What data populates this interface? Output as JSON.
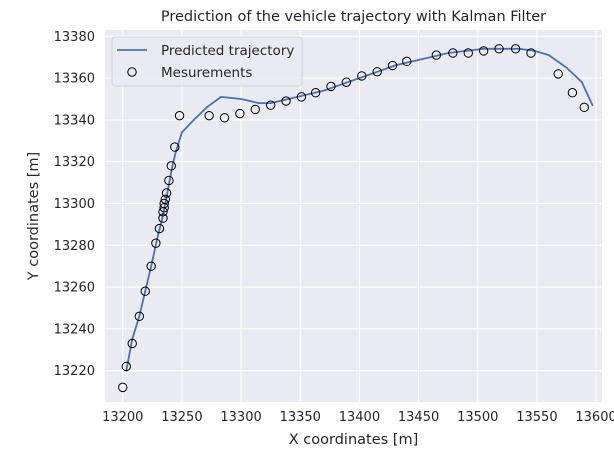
{
  "chart_data": {
    "type": "line",
    "title": "Prediction of the vehicle trajectory with Kalman Filter",
    "xlabel": "X coordinates [m]",
    "ylabel": "Y coordinates [m]",
    "xlim": [
      13185,
      13605
    ],
    "ylim": [
      13205,
      13383
    ],
    "xticks": [
      13200,
      13250,
      13300,
      13350,
      13400,
      13450,
      13500,
      13550,
      13600
    ],
    "yticks": [
      13220,
      13240,
      13260,
      13280,
      13300,
      13320,
      13340,
      13360,
      13380
    ],
    "grid": true,
    "legend_position": "top-left",
    "colors": {
      "background": "#eaeaf2",
      "grid": "#ffffff",
      "line": "#4c72b0",
      "marker_edge": "#000000"
    },
    "series": [
      {
        "name": "Predicted trajectory",
        "kind": "line",
        "x": [
          13203,
          13208,
          13214,
          13219,
          13224,
          13229,
          13233,
          13236,
          13239,
          13242,
          13245,
          13250,
          13260,
          13271,
          13283,
          13300,
          13315,
          13325,
          13340,
          13355,
          13370,
          13385,
          13400,
          13415,
          13430,
          13445,
          13460,
          13475,
          13490,
          13505,
          13520,
          13535,
          13548,
          13560,
          13575,
          13588,
          13597
        ],
        "y": [
          13220,
          13235,
          13246,
          13258,
          13270,
          13283,
          13292,
          13300,
          13309,
          13318,
          13325,
          13334,
          13340,
          13346,
          13351,
          13350,
          13348,
          13348,
          13350,
          13352,
          13354,
          13357,
          13360,
          13363,
          13366,
          13368,
          13370,
          13372,
          13373,
          13374,
          13374,
          13374,
          13373,
          13371,
          13365,
          13358,
          13347
        ]
      },
      {
        "name": "Mesurements",
        "kind": "scatter",
        "x": [
          13200,
          13203,
          13208,
          13214,
          13219,
          13224,
          13228,
          13231,
          13234,
          13234,
          13235,
          13235,
          13236,
          13237,
          13239,
          13241,
          13244,
          13248,
          13273,
          13286,
          13299,
          13312,
          13325,
          13338,
          13351,
          13363,
          13376,
          13389,
          13402,
          13415,
          13428,
          13440,
          13465,
          13479,
          13492,
          13505,
          13518,
          13532,
          13545,
          13568,
          13580,
          13590
        ],
        "y": [
          13212,
          13222,
          13233,
          13246,
          13258,
          13270,
          13281,
          13288,
          13293,
          13296,
          13298,
          13300,
          13302,
          13305,
          13311,
          13318,
          13327,
          13342,
          13342,
          13341,
          13343,
          13345,
          13347,
          13349,
          13351,
          13353,
          13356,
          13358,
          13361,
          13363,
          13366,
          13368,
          13371,
          13372,
          13372,
          13373,
          13374,
          13374,
          13372,
          13362,
          13353,
          13346
        ]
      }
    ]
  }
}
